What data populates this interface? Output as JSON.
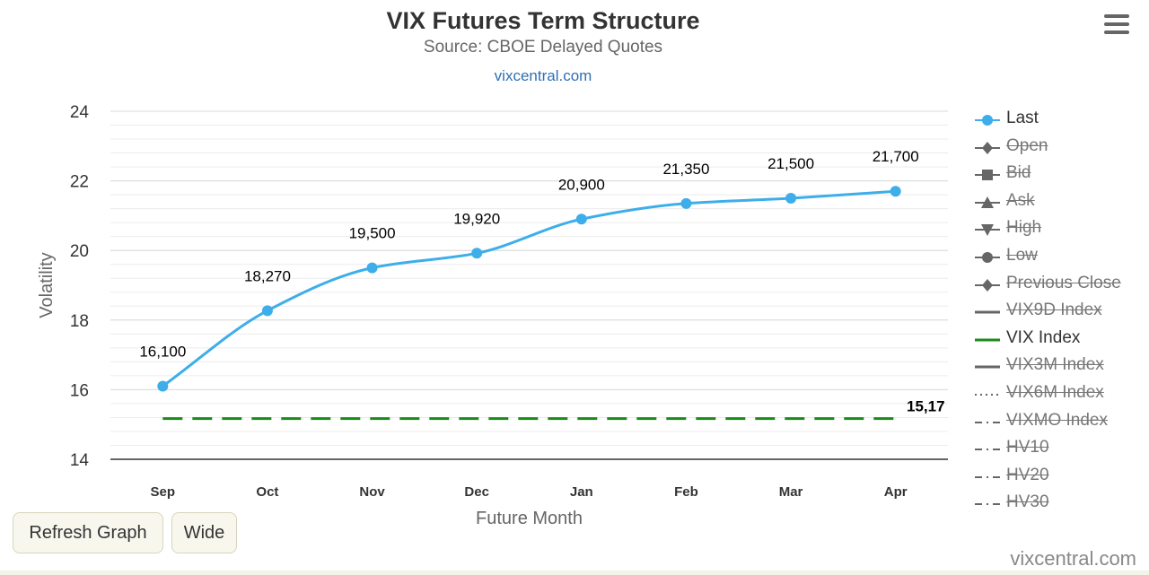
{
  "header": {
    "title": "VIX Futures Term Structure",
    "subtitle": "Source: CBOE Delayed Quotes",
    "link": "vixcentral.com"
  },
  "chart_data": {
    "type": "line",
    "xlabel": "Future Month",
    "ylabel": "Volatility",
    "categories": [
      "Sep",
      "Oct",
      "Nov",
      "Dec",
      "Jan",
      "Feb",
      "Mar",
      "Apr"
    ],
    "ylim": [
      14,
      24
    ],
    "y_ticks": [
      14,
      16,
      18,
      20,
      22,
      24
    ],
    "grid": true,
    "series": [
      {
        "name": "Last",
        "color": "#3daee9",
        "values": [
          16.1,
          18.27,
          19.5,
          19.92,
          20.9,
          21.35,
          21.5,
          21.7
        ],
        "labels": [
          "16,100",
          "18,270",
          "19,500",
          "19,920",
          "20,900",
          "21,350",
          "21,500",
          "21,700"
        ]
      },
      {
        "name": "VIX Index",
        "color": "#1a8a1a",
        "values": [
          15.17,
          15.17,
          15.17,
          15.17,
          15.17,
          15.17,
          15.17,
          15.17
        ],
        "end_label": "15,17"
      }
    ],
    "legend_position": "right"
  },
  "legend": [
    {
      "label": "Last",
      "symbol": "circle",
      "hidden": false,
      "color": "#3daee9"
    },
    {
      "label": "Open",
      "symbol": "diamond",
      "hidden": true
    },
    {
      "label": "Bid",
      "symbol": "square",
      "hidden": true
    },
    {
      "label": "Ask",
      "symbol": "triangle",
      "hidden": true
    },
    {
      "label": "High",
      "symbol": "triangle-down",
      "hidden": true
    },
    {
      "label": "Low",
      "symbol": "circle",
      "hidden": true
    },
    {
      "label": "Previous Close",
      "symbol": "diamond",
      "hidden": true
    },
    {
      "label": "VIX9D Index",
      "symbol": "solid",
      "hidden": true
    },
    {
      "label": "VIX Index",
      "symbol": "solid",
      "hidden": false,
      "color": "#1a8a1a"
    },
    {
      "label": "VIX3M Index",
      "symbol": "solid",
      "hidden": true
    },
    {
      "label": "VIX6M Index",
      "symbol": "dotted",
      "hidden": true
    },
    {
      "label": "VIXMO Index",
      "symbol": "dashdot",
      "hidden": true
    },
    {
      "label": "HV10",
      "symbol": "dashdot",
      "hidden": true
    },
    {
      "label": "HV20",
      "symbol": "dashdot",
      "hidden": true
    },
    {
      "label": "HV30",
      "symbol": "dashdot",
      "hidden": true
    }
  ],
  "buttons": {
    "refresh": "Refresh Graph",
    "wide": "Wide"
  },
  "credits": "vixcentral.com"
}
